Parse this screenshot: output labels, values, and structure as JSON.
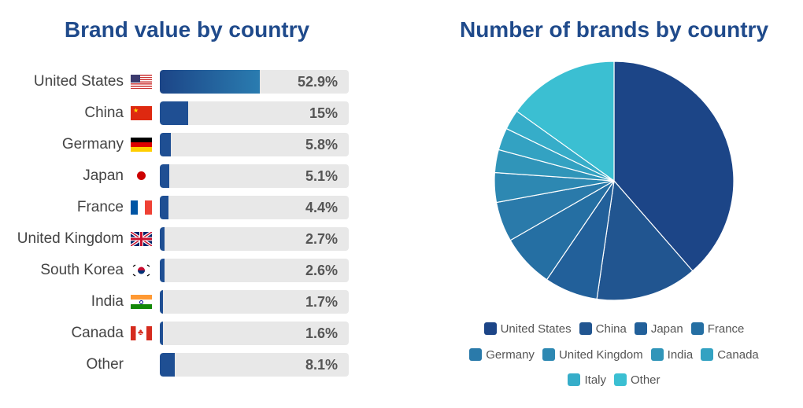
{
  "left_title": "Brand value by country",
  "right_title": "Number of brands by country",
  "chart_data": [
    {
      "type": "bar",
      "title": "Brand value by country",
      "unit": "%",
      "xlim": [
        0,
        100
      ],
      "categories": [
        "United States",
        "China",
        "Germany",
        "Japan",
        "France",
        "United Kingdom",
        "South Korea",
        "India",
        "Canada",
        "Other"
      ],
      "values": [
        52.9,
        15,
        5.8,
        5.1,
        4.4,
        2.7,
        2.6,
        1.7,
        1.6,
        8.1
      ],
      "labels": [
        "52.9%",
        "15%",
        "5.8%",
        "5.1%",
        "4.4%",
        "2.7%",
        "2.6%",
        "1.7%",
        "1.6%",
        "8.1%"
      ],
      "flags": [
        "us",
        "cn",
        "de",
        "jp",
        "fr",
        "gb",
        "kr",
        "in",
        "ca",
        "none"
      ],
      "bar_color": "#1f4f93",
      "track_color": "#e8e8e8"
    },
    {
      "type": "pie",
      "title": "Number of brands by country",
      "legend_position": "bottom",
      "categories": [
        "United States",
        "China",
        "Japan",
        "France",
        "Germany",
        "United Kingdom",
        "India",
        "Canada",
        "Italy",
        "Other"
      ],
      "values": [
        38.6,
        13.7,
        7.2,
        7.2,
        5.4,
        4.0,
        3.1,
        3.0,
        2.7,
        15.1
      ],
      "colors": [
        "#1c4587",
        "#215590",
        "#22609a",
        "#256fa3",
        "#2a7aaa",
        "#2d88b2",
        "#3095b9",
        "#33a2c2",
        "#36adc9",
        "#3bbfd2"
      ]
    }
  ]
}
